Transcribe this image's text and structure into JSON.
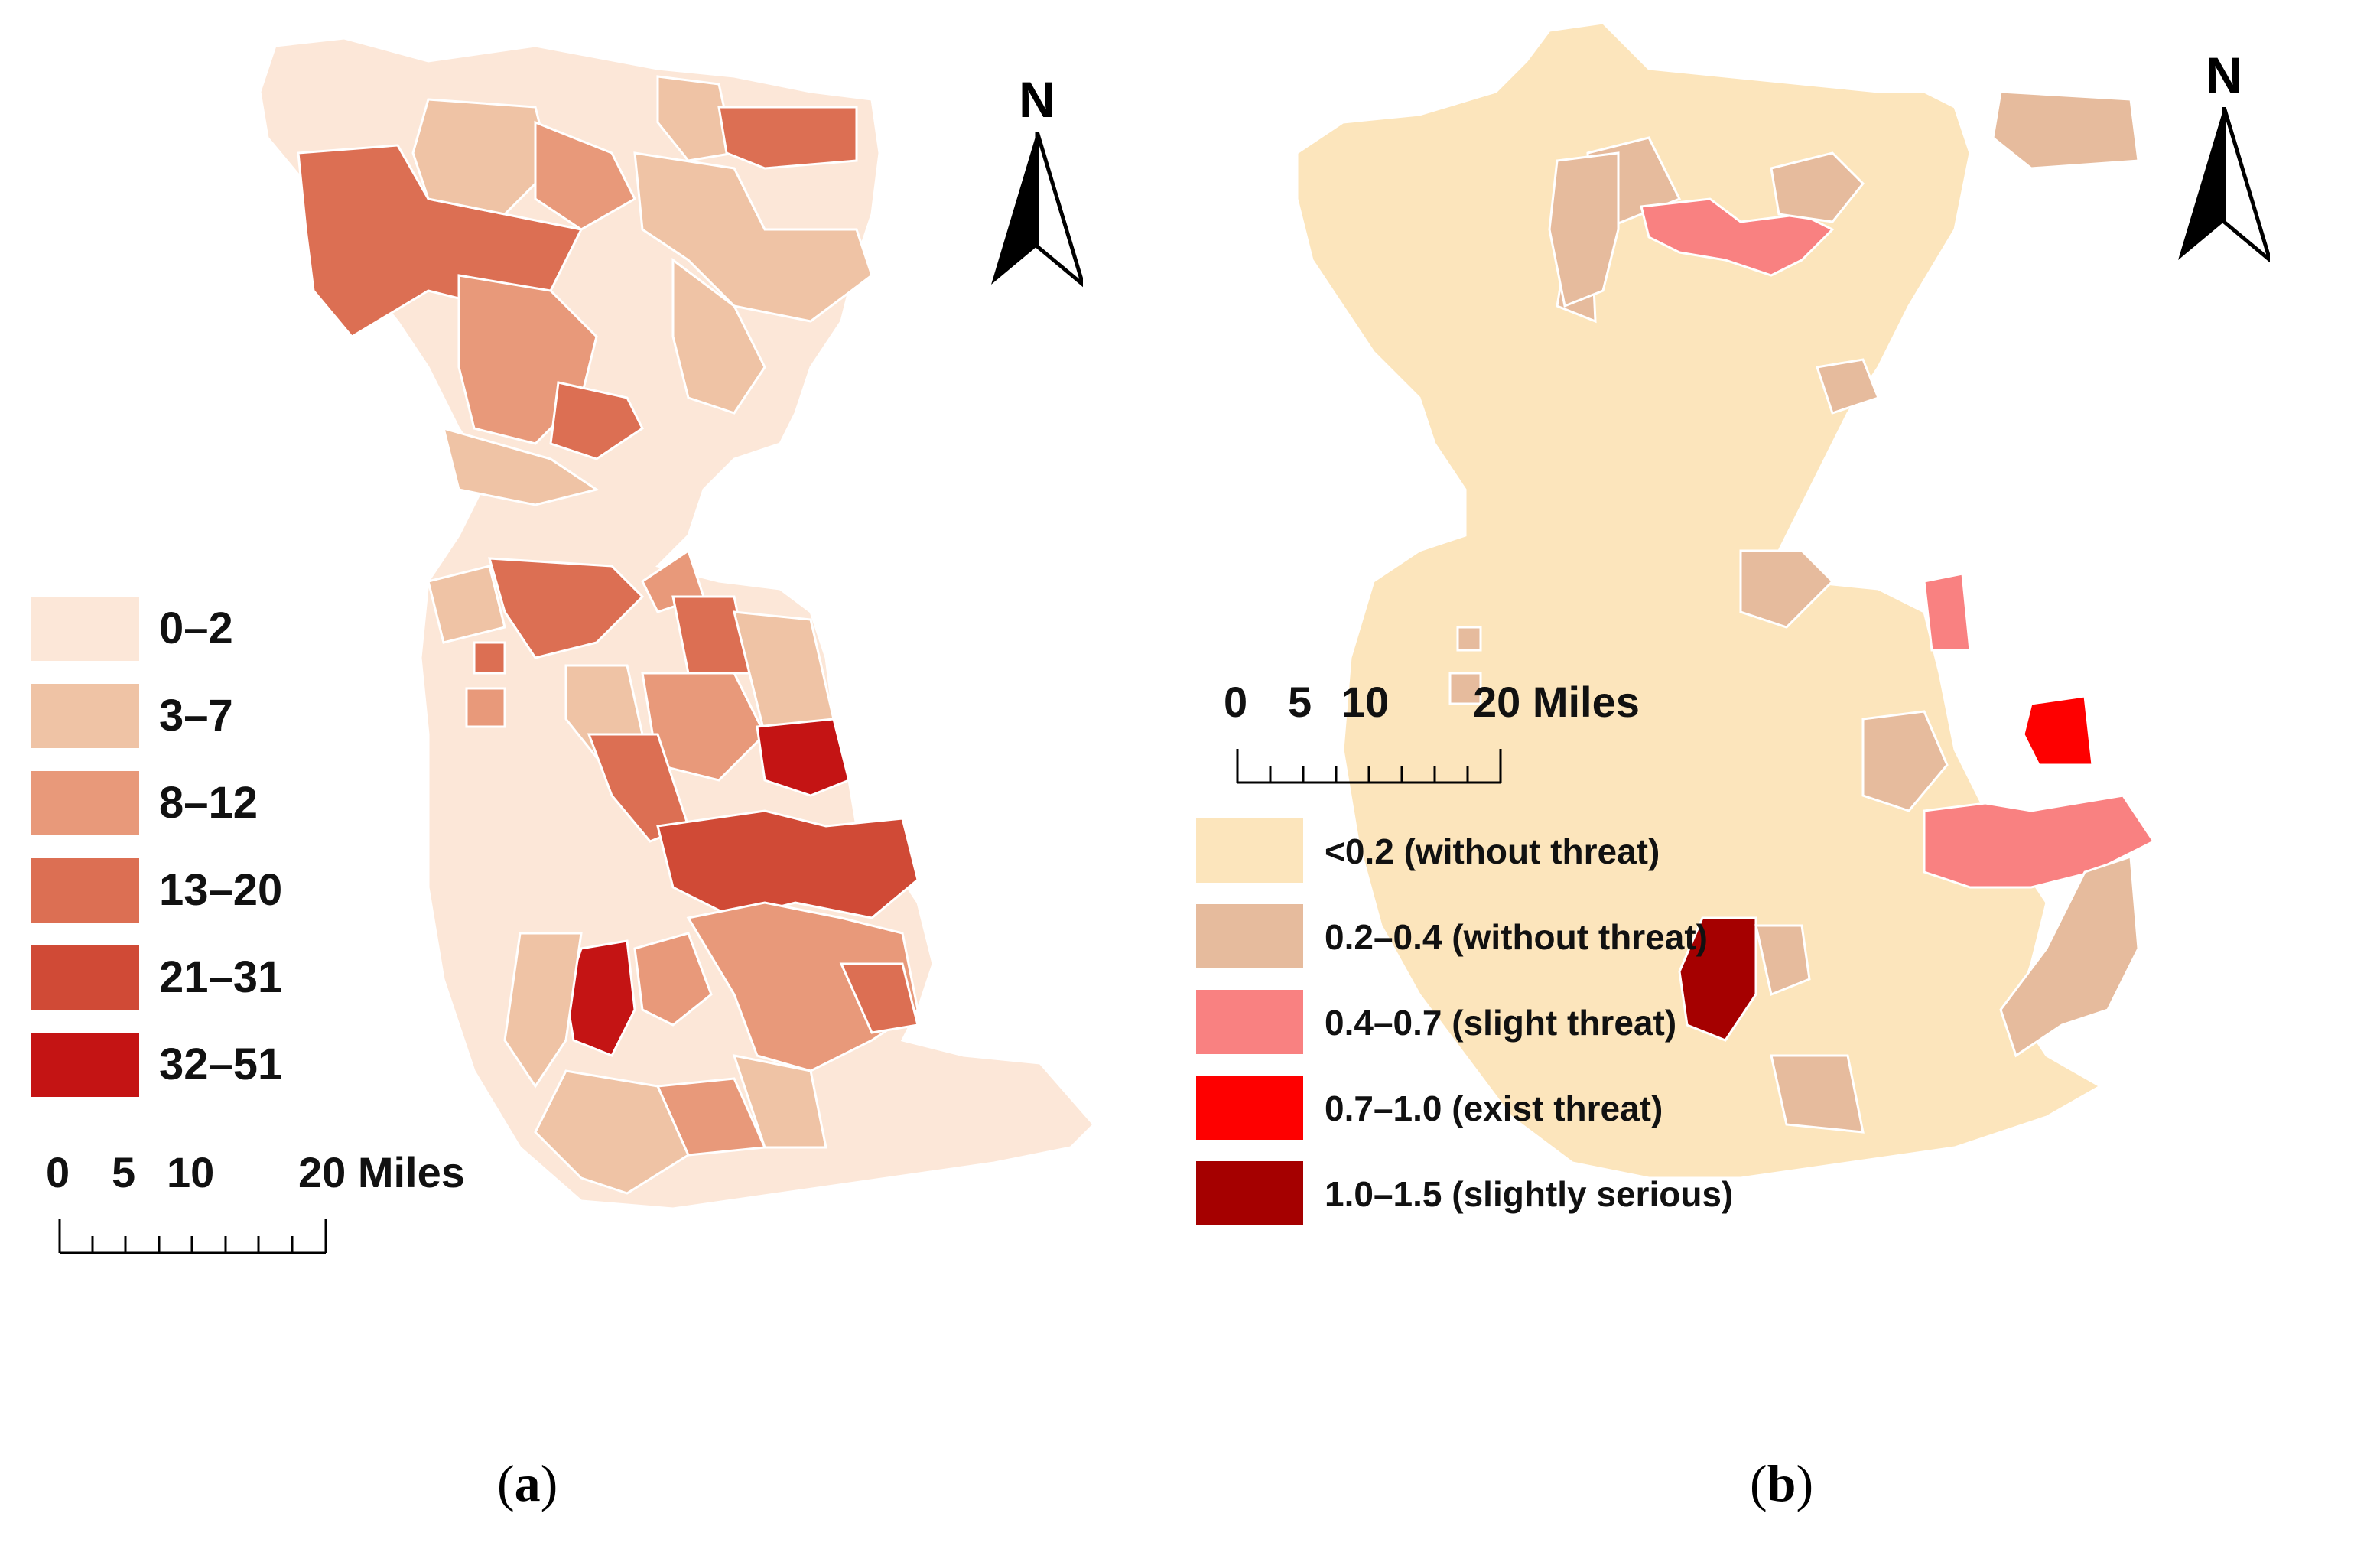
{
  "panels": {
    "a": {
      "caption_open": "(",
      "caption_letter": "a",
      "caption_close": ")",
      "north_label": "N",
      "scale": {
        "labels": [
          "0",
          "5",
          "10",
          "20 Miles"
        ]
      },
      "legend": [
        {
          "label": "0–2",
          "color": "#fce7d8"
        },
        {
          "label": "3–7",
          "color": "#efc3a5"
        },
        {
          "label": "8–12",
          "color": "#e8997a"
        },
        {
          "label": "13–20",
          "color": "#dc6f53"
        },
        {
          "label": "21–31",
          "color": "#d04a36"
        },
        {
          "label": "32–51",
          "color": "#c41414"
        }
      ]
    },
    "b": {
      "caption_open": "(",
      "caption_letter": "b",
      "caption_close": ")",
      "north_label": "N",
      "scale": {
        "labels": [
          "0",
          "5",
          "10",
          "20 Miles"
        ]
      },
      "legend": [
        {
          "label": "<0.2 (without threat)",
          "color": "#fce5bc"
        },
        {
          "label": "0.2–0.4 (without threat)",
          "color": "#e6bb9d"
        },
        {
          "label": "0.4–0.7 (slight threat)",
          "color": "#f98181"
        },
        {
          "label": "0.7–1.0 (exist threat)",
          "color": "#fe0000"
        },
        {
          "label": "1.0–1.5 (slightly serious)",
          "color": "#a50000"
        }
      ]
    }
  }
}
